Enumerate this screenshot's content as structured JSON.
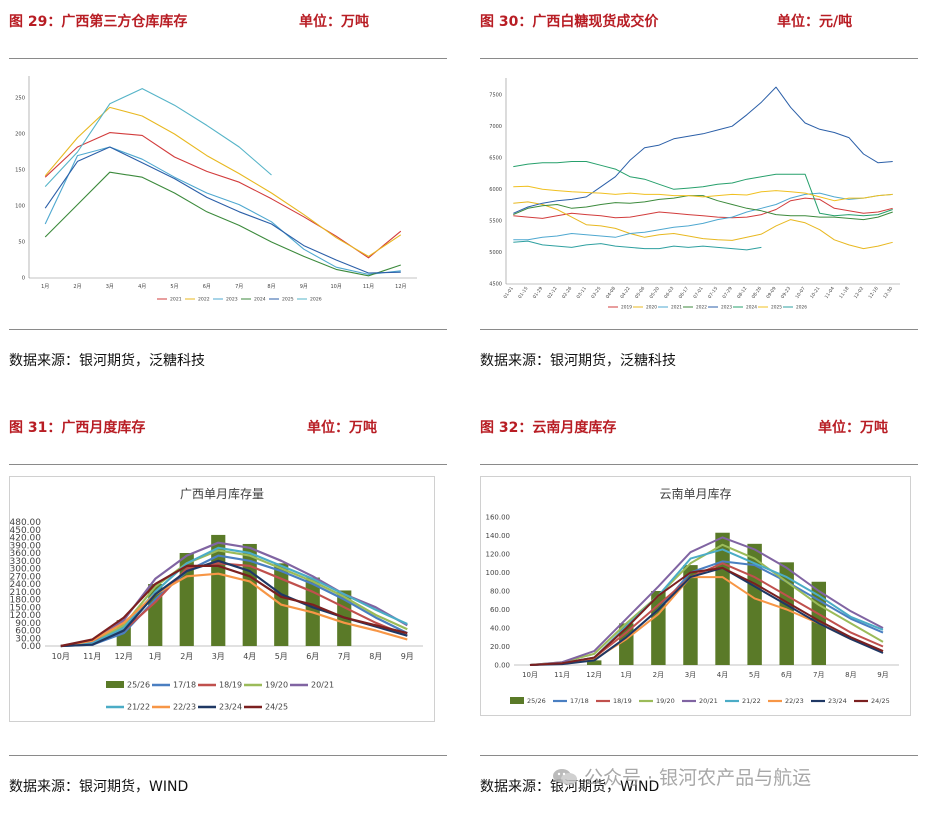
{
  "panels": [
    {
      "title": "图 29：广西第三方仓库库存",
      "unit": "单位：万吨",
      "source": "数据来源：银河期货，泛糖科技"
    },
    {
      "title": "图 30：广西白糖现货成交价",
      "unit": "单位：元/吨",
      "source": "数据来源：银河期货，泛糖科技"
    },
    {
      "title": "图 31：广西月度库存",
      "unit": "单位：万吨",
      "source": "数据来源：银河期货，WIND"
    },
    {
      "title": "图 32：云南月度库存",
      "unit": "单位：万吨",
      "source": "数据来源：银河期货，WIND"
    }
  ],
  "watermark": "公众号 · 银河农产品与航运",
  "chart_data": [
    {
      "type": "line",
      "title": "",
      "categories": [
        "1月",
        "2月",
        "3月",
        "4月",
        "5月",
        "6月",
        "7月",
        "8月",
        "9月",
        "10月",
        "11月",
        "12月"
      ],
      "y_ticks": [
        0,
        50,
        100,
        150,
        200,
        250
      ],
      "ylim": [
        0,
        275
      ],
      "legend_position": "bottom",
      "series": [
        {
          "name": "2021",
          "color": "#d23c3c",
          "values": [
            140,
            182,
            202,
            198,
            168,
            148,
            133,
            110,
            85,
            58,
            28,
            65
          ]
        },
        {
          "name": "2022",
          "color": "#e8b820",
          "values": [
            142,
            195,
            237,
            225,
            200,
            170,
            145,
            118,
            88,
            56,
            30,
            60
          ]
        },
        {
          "name": "2023",
          "color": "#4fa8d0",
          "values": [
            75,
            170,
            182,
            165,
            140,
            118,
            102,
            78,
            40,
            15,
            5,
            10
          ]
        },
        {
          "name": "2024",
          "color": "#3c8a3c",
          "values": [
            57,
            102,
            147,
            140,
            118,
            92,
            73,
            50,
            30,
            12,
            3,
            18
          ]
        },
        {
          "name": "2025",
          "color": "#2b5fa8",
          "values": [
            97,
            162,
            182,
            160,
            138,
            112,
            92,
            75,
            45,
            25,
            7,
            8
          ]
        },
        {
          "name": "2026",
          "color": "#56b4c8",
          "values": [
            127,
            175,
            242,
            263,
            240,
            212,
            182,
            143,
            null,
            null,
            null,
            null
          ]
        }
      ]
    },
    {
      "type": "line",
      "title": "",
      "categories": [
        "01-01",
        "01-15",
        "01-29",
        "02-12",
        "02-26",
        "03-11",
        "03-25",
        "04-08",
        "04-22",
        "05-06",
        "05-20",
        "06-03",
        "06-17",
        "07-01",
        "07-15",
        "07-29",
        "08-12",
        "08-26",
        "09-09",
        "09-23",
        "10-07",
        "10-21",
        "11-04",
        "11-18",
        "12-02",
        "12-16",
        "12-30"
      ],
      "y_ticks": [
        4500,
        5000,
        5500,
        6000,
        6500,
        7000,
        7500
      ],
      "ylim": [
        4500,
        7700
      ],
      "legend_position": "bottom",
      "series": [
        {
          "name": "2019",
          "color": "#d23c3c",
          "values": [
            5580,
            5560,
            5540,
            5580,
            5620,
            5600,
            5580,
            5550,
            5560,
            5600,
            5640,
            5620,
            5600,
            5580,
            5560,
            5550,
            5560,
            5600,
            5680,
            5820,
            5860,
            5840,
            5700,
            5660,
            5620,
            5640,
            5700
          ]
        },
        {
          "name": "2020",
          "color": "#e8b820",
          "values": [
            5780,
            5800,
            5760,
            5680,
            5560,
            5440,
            5420,
            5380,
            5300,
            5240,
            5280,
            5300,
            5260,
            5220,
            5200,
            5190,
            5240,
            5290,
            5420,
            5520,
            5470,
            5360,
            5200,
            5120,
            5060,
            5100,
            5160
          ]
        },
        {
          "name": "2021",
          "color": "#4fa8d0",
          "values": [
            5200,
            5200,
            5240,
            5260,
            5300,
            5280,
            5260,
            5240,
            5300,
            5320,
            5360,
            5400,
            5420,
            5460,
            5520,
            5560,
            5640,
            5700,
            5760,
            5860,
            5920,
            5940,
            5880,
            5840,
            5860,
            5900,
            5920
          ]
        },
        {
          "name": "2022",
          "color": "#3c8a3c",
          "values": [
            5600,
            5700,
            5740,
            5760,
            5700,
            5720,
            5760,
            5790,
            5780,
            5800,
            5840,
            5860,
            5900,
            5900,
            5820,
            5760,
            5700,
            5660,
            5600,
            5580,
            5580,
            5560,
            5560,
            5540,
            5520,
            5560,
            5640
          ]
        },
        {
          "name": "2023",
          "color": "#2b5fa8",
          "values": [
            5620,
            5720,
            5780,
            5820,
            5840,
            5880,
            6040,
            6200,
            6460,
            6660,
            6700,
            6800,
            6840,
            6880,
            6940,
            7000,
            7180,
            7380,
            7620,
            7300,
            7050,
            6950,
            6900,
            6820,
            6560,
            6420,
            6440
          ]
        },
        {
          "name": "2024",
          "color": "#27a06c",
          "values": [
            6360,
            6400,
            6420,
            6420,
            6440,
            6440,
            6380,
            6320,
            6200,
            6160,
            6080,
            6000,
            6020,
            6040,
            6080,
            6100,
            6160,
            6200,
            6240,
            6240,
            6240,
            5620,
            5580,
            5600,
            5580,
            5600,
            5680
          ]
        },
        {
          "name": "2025",
          "color": "#f0c020",
          "values": [
            6040,
            6050,
            6000,
            5980,
            5960,
            5950,
            5940,
            5920,
            5940,
            5920,
            5920,
            5900,
            5900,
            5880,
            5900,
            5920,
            5910,
            5960,
            5980,
            5960,
            5940,
            5880,
            5820,
            5860,
            5860,
            5900,
            5920
          ]
        },
        {
          "name": "2026",
          "color": "#2fa0a0",
          "values": [
            5160,
            5180,
            5120,
            5100,
            5080,
            5120,
            5140,
            5100,
            5080,
            5060,
            5060,
            5100,
            5080,
            5100,
            5080,
            5060,
            5040,
            5080,
            null,
            null,
            null,
            null,
            null,
            null,
            null,
            null,
            null
          ]
        }
      ]
    },
    {
      "type": "bar+line",
      "title": "广西单月库存量",
      "categories": [
        "10月",
        "11月",
        "12月",
        "1月",
        "2月",
        "3月",
        "4月",
        "5月",
        "6月",
        "7月",
        "8月",
        "9月"
      ],
      "y_ticks": [
        0,
        30,
        60,
        90,
        120,
        150,
        180,
        210,
        240,
        270,
        300,
        330,
        360,
        390,
        420,
        450,
        480
      ],
      "ylim": [
        0,
        480
      ],
      "legend_position": "bottom",
      "bar_series": {
        "name": "25/26",
        "color": "#5a7a28",
        "values": [
          0,
          0,
          100,
          240,
          360,
          430,
          395,
          320,
          265,
          215,
          null,
          null
        ]
      },
      "series": [
        {
          "name": "17/18",
          "color": "#4a7fc1",
          "values": [
            0,
            5,
            50,
            180,
            290,
            350,
            330,
            290,
            240,
            180,
            110,
            50
          ]
        },
        {
          "name": "18/19",
          "color": "#c0504d",
          "values": [
            0,
            10,
            60,
            170,
            300,
            320,
            310,
            260,
            210,
            150,
            90,
            40
          ]
        },
        {
          "name": "19/20",
          "color": "#9bbb59",
          "values": [
            0,
            12,
            80,
            230,
            320,
            370,
            350,
            300,
            250,
            190,
            120,
            65
          ]
        },
        {
          "name": "20/21",
          "color": "#8064a2",
          "values": [
            0,
            15,
            100,
            260,
            350,
            400,
            380,
            330,
            270,
            200,
            150,
            80
          ]
        },
        {
          "name": "21/22",
          "color": "#4bacc6",
          "values": [
            0,
            10,
            70,
            210,
            320,
            380,
            360,
            310,
            260,
            200,
            140,
            85
          ]
        },
        {
          "name": "22/23",
          "color": "#f79646",
          "values": [
            0,
            20,
            90,
            200,
            270,
            280,
            250,
            160,
            130,
            90,
            60,
            25
          ]
        },
        {
          "name": "23/24",
          "color": "#1f3864",
          "values": [
            0,
            5,
            60,
            200,
            290,
            330,
            290,
            200,
            150,
            110,
            75,
            40
          ]
        },
        {
          "name": "24/25",
          "color": "#7b2020",
          "values": [
            0,
            25,
            110,
            240,
            310,
            310,
            270,
            190,
            160,
            110,
            80,
            50
          ]
        }
      ]
    },
    {
      "type": "bar+line",
      "title": "云南单月库存",
      "categories": [
        "10月",
        "11月",
        "12月",
        "1月",
        "2月",
        "3月",
        "4月",
        "5月",
        "6月",
        "7月",
        "8月",
        "9月"
      ],
      "y_ticks": [
        0,
        20,
        40,
        60,
        80,
        100,
        120,
        140,
        160
      ],
      "ylim": [
        0,
        160
      ],
      "legend_position": "bottom",
      "bar_series": {
        "name": "25/26",
        "color": "#5a7a28",
        "values": [
          null,
          null,
          5,
          45,
          80,
          108,
          143,
          131,
          111,
          90,
          null,
          null
        ]
      },
      "series": [
        {
          "name": "17/18",
          "color": "#4a7fc1",
          "values": [
            0,
            2,
            5,
            30,
            60,
            100,
            112,
            108,
            90,
            70,
            50,
            35
          ]
        },
        {
          "name": "18/19",
          "color": "#c0504d",
          "values": [
            0,
            2,
            8,
            35,
            65,
            95,
            110,
            95,
            75,
            55,
            35,
            20
          ]
        },
        {
          "name": "19/20",
          "color": "#9bbb59",
          "values": [
            0,
            3,
            12,
            45,
            75,
            110,
            130,
            115,
            90,
            65,
            45,
            25
          ]
        },
        {
          "name": "20/21",
          "color": "#8064a2",
          "values": [
            0,
            3,
            15,
            50,
            85,
            122,
            138,
            125,
            105,
            80,
            58,
            40
          ]
        },
        {
          "name": "21/22",
          "color": "#4bacc6",
          "values": [
            0,
            2,
            8,
            42,
            75,
            115,
            125,
            110,
            95,
            75,
            52,
            38
          ]
        },
        {
          "name": "22/23",
          "color": "#f79646",
          "values": [
            0,
            2,
            6,
            28,
            55,
            95,
            95,
            72,
            60,
            45,
            28,
            15
          ]
        },
        {
          "name": "23/24",
          "color": "#1f3864",
          "values": [
            0,
            1,
            5,
            30,
            60,
            95,
            105,
            85,
            65,
            45,
            28,
            13
          ]
        },
        {
          "name": "24/25",
          "color": "#7b2020",
          "values": [
            0,
            2,
            8,
            40,
            75,
            100,
            105,
            88,
            68,
            48,
            30,
            15
          ]
        }
      ]
    }
  ]
}
